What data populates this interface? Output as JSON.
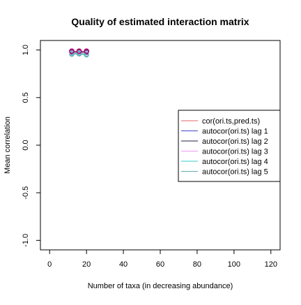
{
  "chart_data": {
    "type": "scatter",
    "title": "Quality of estimated interaction matrix",
    "xlabel": "Number of taxa (in decreasing abundance)",
    "ylabel": "Mean correlation",
    "xlim": [
      -5,
      125
    ],
    "ylim": [
      -1.1,
      1.1
    ],
    "xticks": [
      0,
      20,
      40,
      60,
      80,
      100,
      120
    ],
    "yticks": [
      -1.0,
      -0.5,
      0.0,
      0.5,
      1.0
    ],
    "ytick_labels": [
      "-1.0",
      "-0.5",
      "0.0",
      "0.5",
      "1.0"
    ],
    "legend_position": "right",
    "series": [
      {
        "name": "cor(ori.ts,pred.ts)",
        "color": "#e06666",
        "x": [
          12,
          16,
          20
        ],
        "y": [
          0.985,
          0.985,
          0.985
        ]
      },
      {
        "name": "autocor(ori.ts) lag 1",
        "color": "#4444cc",
        "x": [
          12,
          16,
          20
        ],
        "y": [
          0.98,
          0.98,
          0.98
        ]
      },
      {
        "name": "autocor(ori.ts) lag 2",
        "color": "#222244",
        "x": [
          12,
          16,
          20
        ],
        "y": [
          0.975,
          0.978,
          0.975
        ]
      },
      {
        "name": "autocor(ori.ts) lag 3",
        "color": "#ee99ee",
        "x": [
          12,
          16,
          20
        ],
        "y": [
          0.97,
          0.972,
          0.968
        ]
      },
      {
        "name": "autocor(ori.ts) lag 4",
        "color": "#33cccc",
        "x": [
          12,
          16,
          20
        ],
        "y": [
          0.962,
          0.965,
          0.955
        ]
      },
      {
        "name": "autocor(ori.ts) lag 5",
        "color": "#66aaaa",
        "x": [
          12,
          16,
          20
        ],
        "y": [
          0.955,
          0.958,
          0.948
        ]
      }
    ],
    "overlay_marker": {
      "color": "#c0006a",
      "x": [
        12,
        16,
        20
      ],
      "y": [
        0.988,
        0.988,
        0.988
      ]
    }
  }
}
